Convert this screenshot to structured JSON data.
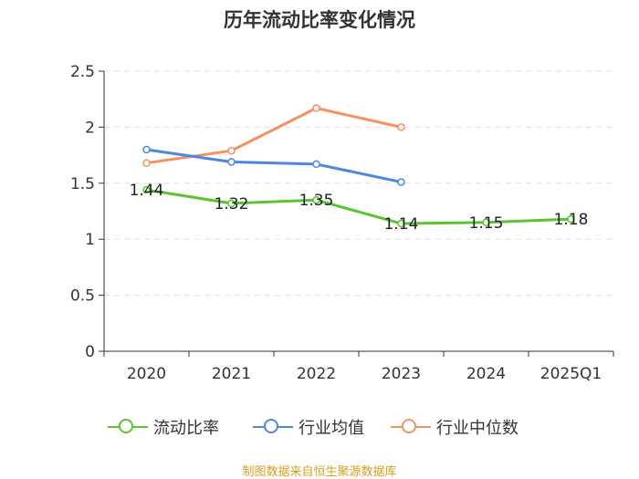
{
  "chart_data": {
    "type": "line",
    "title": "历年流动比率变化情况",
    "categories": [
      "2020",
      "2021",
      "2022",
      "2023",
      "2024",
      "2025Q1"
    ],
    "ylim": [
      0,
      2.5
    ],
    "yticks": [
      "0",
      "0.5",
      "1",
      "1.5",
      "2",
      "2.5"
    ],
    "grid": true,
    "legend_position": "bottom",
    "series": [
      {
        "name": "流动比率",
        "color": "#5bc433",
        "values": [
          1.44,
          1.32,
          1.35,
          1.14,
          1.15,
          1.18
        ],
        "labels": [
          "1.44",
          "1.32",
          "1.35",
          "1.14",
          "1.15",
          "1.18"
        ]
      },
      {
        "name": "行业均值",
        "color": "#4f86e0",
        "values": [
          1.8,
          1.69,
          1.67,
          1.51,
          null,
          null
        ]
      },
      {
        "name": "行业中位数",
        "color": "#f4915e",
        "values": [
          1.68,
          1.79,
          2.17,
          2.0,
          null,
          null
        ]
      }
    ]
  },
  "source": "制图数据来自恒生聚源数据库"
}
